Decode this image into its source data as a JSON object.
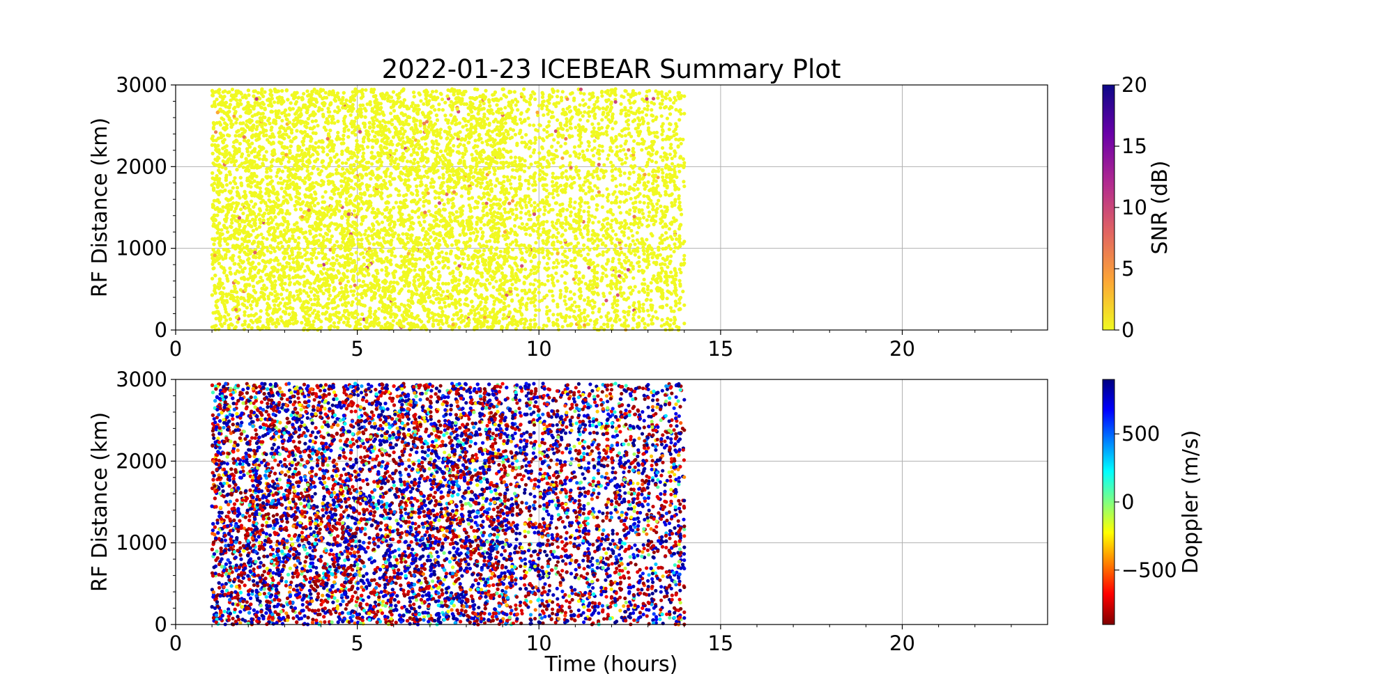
{
  "chart_data": {
    "type": "scatter",
    "title": "2022-01-23 ICEBEAR Summary Plot",
    "xlabel": "Time (hours)",
    "xlim": [
      0,
      24
    ],
    "x_ticks": [
      0,
      5,
      10,
      15,
      20
    ],
    "x_tick_labels": [
      "0",
      "5",
      "10",
      "15",
      "20"
    ],
    "grid": true,
    "data_extent": {
      "time_start_hours": 1.0,
      "dense_until_hours": 9.2,
      "time_end_hours": 14.0,
      "rf_distance_max_km": 2950
    },
    "panels": [
      {
        "ylabel": "RF Distance (km)",
        "ylim": [
          0,
          3000
        ],
        "y_ticks": [
          0,
          1000,
          2000,
          3000
        ],
        "y_tick_labels": [
          "0",
          "1000",
          "2000",
          "3000"
        ],
        "color_variable": "SNR",
        "dominant_value": 0,
        "colorbar": {
          "label": "SNR (dB)",
          "range": [
            0,
            20
          ],
          "ticks": [
            0,
            5,
            10,
            15,
            20
          ],
          "tick_labels": [
            "0",
            "5",
            "10",
            "15",
            "20"
          ],
          "colormap": "plasma_r",
          "colors": [
            "#f0f921",
            "#fca636",
            "#e16462",
            "#b12a90",
            "#6a00a8",
            "#0d0887"
          ]
        }
      },
      {
        "ylabel": "RF Distance (km)",
        "ylim": [
          0,
          3000
        ],
        "y_ticks": [
          0,
          1000,
          2000,
          3000
        ],
        "y_tick_labels": [
          "0",
          "1000",
          "2000",
          "3000"
        ],
        "color_variable": "Doppler",
        "colorbar": {
          "label": "Doppler (m/s)",
          "range": [
            -900,
            900
          ],
          "ticks": [
            -500,
            0,
            500
          ],
          "tick_labels": [
            "−500",
            "0",
            "500"
          ],
          "colormap": "jet_r",
          "colors": [
            "#800000",
            "#ff0000",
            "#ff8000",
            "#ffff00",
            "#80ff80",
            "#00ffff",
            "#0080ff",
            "#0000ff",
            "#000080"
          ]
        }
      }
    ]
  }
}
